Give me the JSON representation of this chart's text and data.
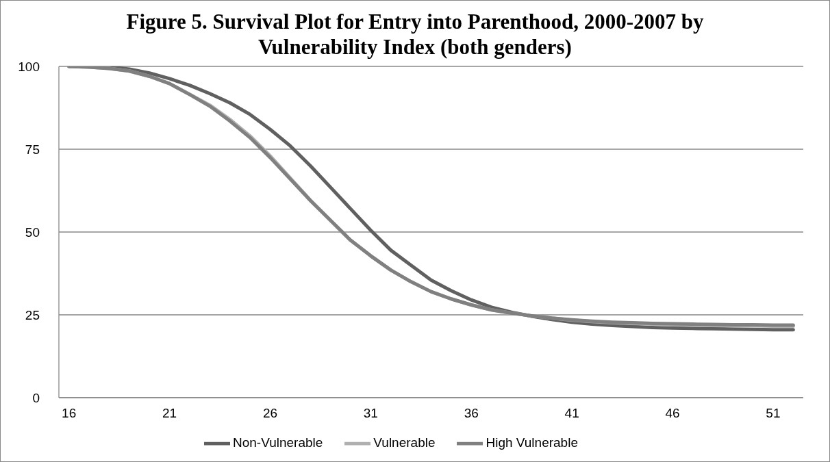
{
  "chart_data": {
    "type": "line",
    "title": "Figure 5. Survival Plot for Entry into Parenthood, 2000-2007 by Vulnerability Index (both genders)",
    "x": [
      16,
      17,
      18,
      19,
      20,
      21,
      22,
      23,
      24,
      25,
      26,
      27,
      28,
      29,
      30,
      31,
      32,
      33,
      34,
      35,
      36,
      37,
      38,
      39,
      40,
      41,
      42,
      43,
      44,
      45,
      46,
      47,
      48,
      49,
      50,
      51,
      52
    ],
    "xlim": [
      15.5,
      52.5
    ],
    "xticks": [
      16,
      21,
      26,
      31,
      36,
      41,
      46,
      51
    ],
    "ylim": [
      0,
      100
    ],
    "yticks": [
      0,
      25,
      50,
      75,
      100
    ],
    "series": [
      {
        "name": "Non-Vulnerable",
        "color": "#606060",
        "values": [
          100,
          100,
          99.8,
          99.2,
          98,
          96.3,
          94.3,
          91.8,
          89,
          85.5,
          81,
          76,
          70,
          63.5,
          57,
          50.5,
          44.5,
          40,
          35.5,
          32.3,
          29.5,
          27.3,
          25.8,
          24.6,
          23.6,
          22.8,
          22.2,
          21.8,
          21.5,
          21.2,
          21,
          20.9,
          20.8,
          20.7,
          20.6,
          20.5,
          20.5
        ]
      },
      {
        "name": "Vulnerable",
        "color": "#b0b0b0",
        "values": [
          100,
          99.8,
          99.4,
          98.6,
          97,
          94.8,
          91.6,
          88.3,
          84,
          79,
          73,
          66.3,
          59.6,
          53.5,
          47.5,
          42.8,
          38.5,
          35,
          32,
          29.8,
          28,
          26.5,
          25.5,
          24.7,
          24,
          23.4,
          23,
          22.6,
          22.4,
          22.2,
          22,
          21.9,
          21.8,
          21.7,
          21.7,
          21.6,
          21.6
        ]
      },
      {
        "name": "High Vulnerable",
        "color": "#808080",
        "values": [
          100,
          99.8,
          99.4,
          98.6,
          97,
          94.8,
          91.5,
          88,
          83.5,
          78.5,
          72.5,
          66,
          59.5,
          53.5,
          47.5,
          42.8,
          38.5,
          35,
          32,
          29.8,
          28,
          26.5,
          25.5,
          24.7,
          24,
          23.5,
          23.1,
          22.8,
          22.6,
          22.4,
          22.3,
          22.2,
          22.1,
          22,
          22,
          21.9,
          21.9
        ]
      }
    ],
    "grid": "y",
    "legend": "bottom",
    "marker": "none",
    "line_style": "solid"
  }
}
